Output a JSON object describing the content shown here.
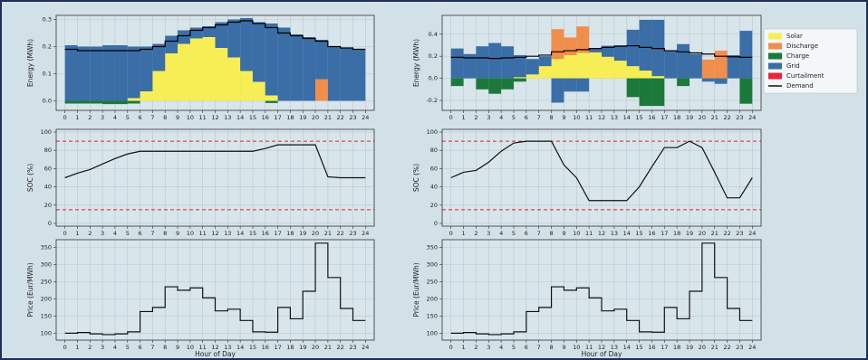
{
  "chart_data": [
    {
      "type": "bar",
      "ylabel": "Energy (MWh)",
      "grid": true,
      "x": [
        0,
        1,
        2,
        3,
        4,
        5,
        6,
        7,
        8,
        9,
        10,
        11,
        12,
        13,
        14,
        15,
        16,
        17,
        18,
        19,
        20,
        21,
        22,
        23
      ],
      "xlim": [
        -0.7,
        24.7
      ],
      "xticks": [
        0,
        1,
        2,
        3,
        4,
        5,
        6,
        7,
        8,
        9,
        10,
        11,
        12,
        13,
        14,
        15,
        16,
        17,
        18,
        19,
        20,
        21,
        22,
        23,
        24
      ],
      "ylim": [
        -0.035,
        0.315
      ],
      "yticks": [
        {
          "value": 0,
          "label": "0.0"
        },
        0.1,
        0.2,
        0.3
      ],
      "series": [
        {
          "name": "Solar",
          "color": "#f7ee55",
          "values": [
            0,
            0,
            0,
            0,
            0,
            0.01,
            0.035,
            0.11,
            0.175,
            0.21,
            0.23,
            0.235,
            0.195,
            0.16,
            0.11,
            0.07,
            0.02,
            0,
            0,
            0,
            0,
            0,
            0,
            0
          ]
        },
        {
          "name": "Discharge",
          "color": "#f28e4b",
          "values": [
            0,
            0,
            0,
            0,
            0,
            0,
            0,
            0,
            0,
            0,
            0,
            0,
            0,
            0,
            0,
            0,
            0,
            0,
            0,
            0,
            0.08,
            0,
            0,
            0
          ]
        },
        {
          "name": "Grid",
          "color": "#3b6ea6",
          "values": [
            0.205,
            0.2,
            0.2,
            0.205,
            0.205,
            0.19,
            0.165,
            0.1,
            0.065,
            0.05,
            0.04,
            0.04,
            0.095,
            0.14,
            0.195,
            0.22,
            0.265,
            0.27,
            0.245,
            0.235,
            0.145,
            0.2,
            0.195,
            0.19
          ]
        },
        {
          "name": "Charge",
          "color": "#1b7a3b",
          "values": [
            -0.01,
            -0.01,
            -0.01,
            -0.012,
            -0.012,
            -0.01,
            0,
            0,
            0,
            0,
            0,
            0,
            0,
            0,
            0,
            0,
            -0.008,
            0,
            0,
            0,
            0,
            0,
            0,
            0
          ]
        },
        {
          "name": "Curtailment",
          "color": "#e8253e",
          "values": [
            0,
            0,
            0,
            0,
            0,
            0,
            0,
            0,
            0,
            0,
            0,
            0,
            0,
            0,
            0,
            0,
            0,
            0,
            0,
            0,
            0,
            0,
            0,
            0
          ]
        },
        {
          "name": "Demand",
          "color": "#000000",
          "mark": "step",
          "values": [
            0.19,
            0.185,
            0.185,
            0.185,
            0.185,
            0.185,
            0.19,
            0.2,
            0.22,
            0.24,
            0.26,
            0.27,
            0.28,
            0.29,
            0.295,
            0.285,
            0.27,
            0.25,
            0.24,
            0.23,
            0.22,
            0.2,
            0.195,
            0.19
          ]
        }
      ]
    },
    {
      "type": "bar",
      "ylabel": "Energy (MWh)",
      "grid": true,
      "legend": "outside right",
      "x": [
        0,
        1,
        2,
        3,
        4,
        5,
        6,
        7,
        8,
        9,
        10,
        11,
        12,
        13,
        14,
        15,
        16,
        17,
        18,
        19,
        20,
        21,
        22,
        23
      ],
      "xlim": [
        -0.7,
        24.7
      ],
      "xticks": [
        0,
        1,
        2,
        3,
        4,
        5,
        6,
        7,
        8,
        9,
        10,
        11,
        12,
        13,
        14,
        15,
        16,
        17,
        18,
        19,
        20,
        21,
        22,
        23,
        24
      ],
      "ylim": [
        -0.29,
        0.57
      ],
      "yticks": [
        -0.2,
        {
          "value": 0,
          "label": "0.0"
        },
        0.2,
        0.4
      ],
      "series": [
        {
          "name": "Solar",
          "color": "#f7ee55",
          "values": [
            0,
            0,
            0,
            0,
            0,
            0.01,
            0.035,
            0.11,
            0.175,
            0.21,
            0.23,
            0.235,
            0.195,
            0.16,
            0.11,
            0.07,
            0.02,
            0,
            0,
            0,
            0,
            0,
            0,
            0
          ]
        },
        {
          "name": "Discharge",
          "color": "#f28e4b",
          "values": [
            0,
            0,
            0,
            0,
            0,
            0,
            0,
            0,
            0.27,
            0.16,
            0.24,
            0,
            0,
            0,
            0,
            0,
            0,
            0,
            0,
            0,
            0.17,
            0.25,
            0,
            0
          ]
        },
        {
          "name": "Charge",
          "color": "#1b7a3b",
          "values": [
            -0.07,
            0,
            -0.1,
            -0.14,
            -0.1,
            -0.03,
            0,
            0,
            0,
            0,
            0,
            0,
            0,
            0,
            -0.17,
            -0.25,
            -0.25,
            0,
            -0.07,
            0,
            0,
            0,
            0,
            -0.23
          ]
        },
        {
          "name": "Grid",
          "color": "#3b6ea6",
          "values": [
            0.27,
            0.22,
            0.29,
            0.32,
            0.29,
            0.2,
            0.14,
            0.09,
            -0.22,
            -0.12,
            -0.12,
            0.04,
            0.1,
            0.14,
            0.33,
            0.46,
            0.51,
            0.25,
            0.31,
            0.22,
            -0.03,
            -0.05,
            0.21,
            0.43
          ]
        },
        {
          "name": "Curtailment",
          "color": "#e8253e",
          "values": [
            0,
            0,
            0,
            0,
            0,
            0,
            0,
            0,
            0,
            0,
            0,
            0,
            0,
            0,
            0,
            0,
            0,
            0,
            0,
            0,
            0,
            0,
            0,
            0
          ]
        },
        {
          "name": "Demand",
          "color": "#000000",
          "mark": "step",
          "values": [
            0.19,
            0.185,
            0.185,
            0.18,
            0.185,
            0.19,
            0.2,
            0.21,
            0.24,
            0.25,
            0.26,
            0.27,
            0.28,
            0.29,
            0.295,
            0.28,
            0.27,
            0.25,
            0.24,
            0.23,
            0.22,
            0.2,
            0.195,
            0.19
          ]
        }
      ]
    },
    {
      "type": "line",
      "ylabel": "SOC (%)",
      "grid": true,
      "x": [
        0,
        1,
        2,
        3,
        4,
        5,
        6,
        7,
        8,
        9,
        10,
        11,
        12,
        13,
        14,
        15,
        16,
        17,
        18,
        19,
        20,
        21,
        22,
        23,
        24
      ],
      "xlim": [
        -0.7,
        24.7
      ],
      "xticks": [
        0,
        1,
        2,
        3,
        4,
        5,
        6,
        7,
        8,
        9,
        10,
        11,
        12,
        13,
        14,
        15,
        16,
        17,
        18,
        19,
        20,
        21,
        22,
        23,
        24
      ],
      "ylim": [
        -3,
        103
      ],
      "yticks": [
        0,
        20,
        40,
        60,
        80,
        100
      ],
      "hlines": [
        {
          "value": 90,
          "color": "#d62728"
        },
        {
          "value": 15,
          "color": "#d62728"
        }
      ],
      "series": [
        {
          "color": "#111111",
          "values": [
            50,
            55,
            59,
            65,
            71,
            76,
            79,
            79,
            79,
            79,
            79,
            79,
            79,
            79,
            79,
            79,
            82,
            86,
            86,
            86,
            86,
            51,
            50,
            50,
            50
          ]
        }
      ]
    },
    {
      "type": "line",
      "ylabel": "SOC (%)",
      "grid": true,
      "x": [
        0,
        1,
        2,
        3,
        4,
        5,
        6,
        7,
        8,
        9,
        10,
        11,
        12,
        13,
        14,
        15,
        16,
        17,
        18,
        19,
        20,
        21,
        22,
        23,
        24
      ],
      "xlim": [
        -0.7,
        24.7
      ],
      "xticks": [
        0,
        1,
        2,
        3,
        4,
        5,
        6,
        7,
        8,
        9,
        10,
        11,
        12,
        13,
        14,
        15,
        16,
        17,
        18,
        19,
        20,
        21,
        22,
        23,
        24
      ],
      "ylim": [
        -3,
        103
      ],
      "yticks": [
        0,
        20,
        40,
        60,
        80,
        100
      ],
      "hlines": [
        {
          "value": 90,
          "color": "#d62728"
        },
        {
          "value": 15,
          "color": "#d62728"
        }
      ],
      "series": [
        {
          "color": "#111111",
          "values": [
            50,
            56,
            58,
            67,
            79,
            88,
            90,
            90,
            90,
            64,
            50,
            25,
            25,
            25,
            25,
            40,
            62,
            83,
            83,
            90,
            83,
            56,
            28,
            28,
            50
          ]
        }
      ]
    },
    {
      "type": "step",
      "ylabel": "Price (Eur/MWh)",
      "xlabel": "Hour of Day",
      "grid": true,
      "x": [
        0,
        1,
        2,
        3,
        4,
        5,
        6,
        7,
        8,
        9,
        10,
        11,
        12,
        13,
        14,
        15,
        16,
        17,
        18,
        19,
        20,
        21,
        22,
        23
      ],
      "xlim": [
        -0.7,
        24.7
      ],
      "xticks": [
        0,
        1,
        2,
        3,
        4,
        5,
        6,
        7,
        8,
        9,
        10,
        11,
        12,
        13,
        14,
        15,
        16,
        17,
        18,
        19,
        20,
        21,
        22,
        23,
        24
      ],
      "ylim": [
        80,
        372
      ],
      "yticks": [
        100,
        150,
        200,
        250,
        300,
        350
      ],
      "series": [
        {
          "color": "#111111",
          "values": [
            100,
            102,
            98,
            96,
            98,
            104,
            163,
            175,
            235,
            225,
            232,
            203,
            165,
            170,
            137,
            104,
            103,
            175,
            142,
            222,
            362,
            262,
            172,
            137
          ]
        }
      ]
    },
    {
      "type": "step",
      "ylabel": "Price (Eur/MWh)",
      "xlabel": "Hour of Day",
      "grid": true,
      "x": [
        0,
        1,
        2,
        3,
        4,
        5,
        6,
        7,
        8,
        9,
        10,
        11,
        12,
        13,
        14,
        15,
        16,
        17,
        18,
        19,
        20,
        21,
        22,
        23
      ],
      "xlim": [
        -0.7,
        24.7
      ],
      "xticks": [
        0,
        1,
        2,
        3,
        4,
        5,
        6,
        7,
        8,
        9,
        10,
        11,
        12,
        13,
        14,
        15,
        16,
        17,
        18,
        19,
        20,
        21,
        22,
        23,
        24
      ],
      "ylim": [
        80,
        372
      ],
      "yticks": [
        100,
        150,
        200,
        250,
        300,
        350
      ],
      "series": [
        {
          "color": "#111111",
          "values": [
            100,
            102,
            98,
            96,
            98,
            104,
            163,
            175,
            235,
            225,
            232,
            203,
            165,
            170,
            137,
            104,
            103,
            175,
            142,
            222,
            362,
            262,
            172,
            137
          ]
        }
      ]
    }
  ]
}
